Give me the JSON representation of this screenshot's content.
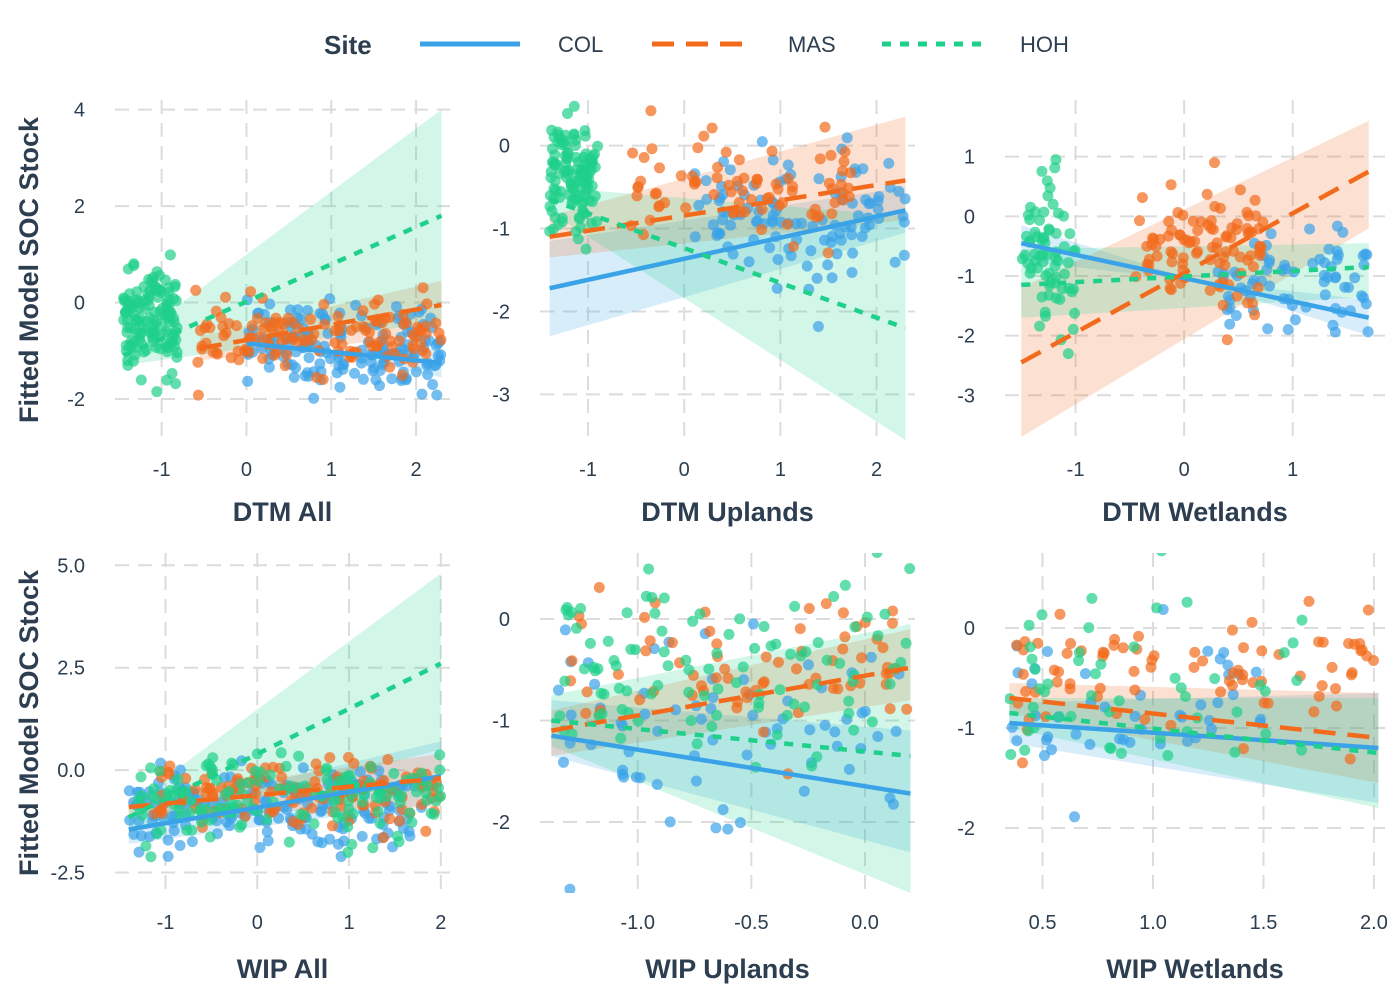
{
  "legend": {
    "title": "Site",
    "entries": [
      {
        "name": "COL",
        "color": "#3aa3e8",
        "dash": "solid"
      },
      {
        "name": "MAS",
        "color": "#f26b1d",
        "dash": "dashed"
      },
      {
        "name": "HOH",
        "color": "#1fd08a",
        "dash": "dotted"
      }
    ]
  },
  "chart_data": [
    {
      "type": "scatter",
      "panel": "top-left",
      "xlabel": "DTM All",
      "ylabel": "Fitted Model SOC Stock",
      "xlim": [
        -1.55,
        2.4
      ],
      "ylim": [
        -2.85,
        4.2
      ],
      "xticks": [
        -1,
        0,
        1,
        2
      ],
      "xtick_labels": [
        "-1",
        "0",
        "1",
        "2"
      ],
      "yticks": [
        -2,
        0,
        2,
        4
      ],
      "ytick_labels": [
        "-2",
        "0",
        "2",
        "4"
      ],
      "series": [
        {
          "name": "COL",
          "x_range": [
            0.0,
            2.3
          ],
          "y_mean": -0.9,
          "y_spread": 0.45,
          "n": 160,
          "fit": [
            [
              0.0,
              -0.85
            ],
            [
              2.3,
              -1.25
            ]
          ],
          "ribbon_lo": [
            [
              0.0,
              -0.7
            ],
            [
              2.3,
              -1.55
            ]
          ],
          "ribbon_hi": [
            [
              0.0,
              -1.0
            ],
            [
              2.3,
              -0.95
            ]
          ]
        },
        {
          "name": "MAS",
          "x_range": [
            -0.6,
            2.3
          ],
          "y_mean": -0.7,
          "y_spread": 0.35,
          "n": 130,
          "fit": [
            [
              -0.55,
              -0.95
            ],
            [
              2.3,
              -0.05
            ]
          ],
          "ribbon_lo": [
            [
              -0.55,
              -1.2
            ],
            [
              2.3,
              -0.65
            ]
          ],
          "ribbon_hi": [
            [
              -0.55,
              -0.7
            ],
            [
              2.3,
              0.45
            ]
          ]
        },
        {
          "name": "HOH",
          "x_range": [
            -1.45,
            -0.8
          ],
          "y_mean": -0.4,
          "y_spread": 0.5,
          "n": 140,
          "fit": [
            [
              -1.45,
              -1.1
            ],
            [
              2.3,
              1.8
            ]
          ],
          "ribbon_lo": [
            [
              -1.45,
              -1.3
            ],
            [
              2.3,
              -0.4
            ]
          ],
          "ribbon_hi": [
            [
              -1.45,
              -0.9
            ],
            [
              2.3,
              4.0
            ]
          ]
        }
      ]
    },
    {
      "type": "scatter",
      "panel": "top-middle",
      "xlabel": "DTM Uplands",
      "ylabel": "",
      "xlim": [
        -1.5,
        2.4
      ],
      "ylim": [
        -3.55,
        0.55
      ],
      "xticks": [
        -1,
        0,
        1,
        2
      ],
      "xtick_labels": [
        "-1",
        "0",
        "1",
        "2"
      ],
      "yticks": [
        -3,
        -2,
        -1,
        0
      ],
      "ytick_labels": [
        "-3",
        "-2",
        "-1",
        "0"
      ],
      "series": [
        {
          "name": "COL",
          "x_range": [
            0.1,
            2.3
          ],
          "y_mean": -0.9,
          "y_spread": 0.45,
          "n": 110,
          "fit": [
            [
              -1.4,
              -1.72
            ],
            [
              2.3,
              -0.78
            ]
          ],
          "ribbon_lo": [
            [
              -1.4,
              -2.3
            ],
            [
              2.3,
              -1.05
            ]
          ],
          "ribbon_hi": [
            [
              -1.4,
              -1.15
            ],
            [
              2.3,
              -0.5
            ]
          ]
        },
        {
          "name": "MAS",
          "x_range": [
            -0.6,
            1.8
          ],
          "y_mean": -0.5,
          "y_spread": 0.3,
          "n": 80,
          "fit": [
            [
              -1.4,
              -1.1
            ],
            [
              2.3,
              -0.42
            ]
          ],
          "ribbon_lo": [
            [
              -1.4,
              -1.35
            ],
            [
              2.3,
              -0.9
            ]
          ],
          "ribbon_hi": [
            [
              -1.4,
              -0.85
            ],
            [
              2.3,
              0.35
            ]
          ]
        },
        {
          "name": "HOH",
          "x_range": [
            -1.4,
            -0.9
          ],
          "y_mean": -0.4,
          "y_spread": 0.35,
          "n": 120,
          "fit": [
            [
              -1.4,
              -0.65
            ],
            [
              2.3,
              -2.2
            ]
          ],
          "ribbon_lo": [
            [
              -1.4,
              -0.8
            ],
            [
              2.3,
              -3.55
            ]
          ],
          "ribbon_hi": [
            [
              -1.4,
              -0.5
            ],
            [
              2.3,
              -0.85
            ]
          ]
        }
      ]
    },
    {
      "type": "scatter",
      "panel": "top-right",
      "xlabel": "DTM Wetlands",
      "ylabel": "",
      "xlim": [
        -1.65,
        1.85
      ],
      "ylim": [
        -3.75,
        1.95
      ],
      "xticks": [
        -1,
        0,
        1
      ],
      "xtick_labels": [
        "-1",
        "0",
        "1"
      ],
      "yticks": [
        -3,
        -2,
        -1,
        0,
        1
      ],
      "ytick_labels": [
        "-3",
        "-2",
        "-1",
        "0",
        "1"
      ],
      "series": [
        {
          "name": "COL",
          "x_range": [
            0.3,
            1.7
          ],
          "y_mean": -1.1,
          "y_spread": 0.4,
          "n": 70,
          "fit": [
            [
              -1.5,
              -0.45
            ],
            [
              1.7,
              -1.7
            ]
          ],
          "ribbon_lo": [
            [
              -1.5,
              -0.15
            ],
            [
              1.7,
              -2.0
            ]
          ],
          "ribbon_hi": [
            [
              -1.5,
              -0.75
            ],
            [
              1.7,
              -1.4
            ]
          ]
        },
        {
          "name": "MAS",
          "x_range": [
            -0.45,
            0.75
          ],
          "y_mean": -0.5,
          "y_spread": 0.55,
          "n": 100,
          "fit": [
            [
              -1.5,
              -2.45
            ],
            [
              1.7,
              0.75
            ]
          ],
          "ribbon_lo": [
            [
              -1.5,
              -3.7
            ],
            [
              1.7,
              -0.2
            ]
          ],
          "ribbon_hi": [
            [
              -1.5,
              -1.2
            ],
            [
              1.7,
              1.6
            ]
          ]
        },
        {
          "name": "HOH",
          "x_range": [
            -1.5,
            -1.0
          ],
          "y_mean": -0.6,
          "y_spread": 0.65,
          "n": 70,
          "fit": [
            [
              -1.5,
              -1.15
            ],
            [
              1.7,
              -0.85
            ]
          ],
          "ribbon_lo": [
            [
              -1.5,
              -1.7
            ],
            [
              1.7,
              -1.35
            ]
          ],
          "ribbon_hi": [
            [
              -1.5,
              -0.55
            ],
            [
              1.7,
              -0.45
            ]
          ]
        }
      ]
    },
    {
      "type": "scatter",
      "panel": "bottom-left",
      "xlabel": "WIP All",
      "ylabel": "Fitted Model SOC Stock",
      "xlim": [
        -1.55,
        2.1
      ],
      "ylim": [
        -3.0,
        5.3
      ],
      "xticks": [
        -1,
        0,
        1,
        2
      ],
      "xtick_labels": [
        "-1",
        "0",
        "1",
        "2"
      ],
      "yticks": [
        -2.5,
        0.0,
        2.5,
        5.0
      ],
      "ytick_labels": [
        "-2.5",
        "0.0",
        "2.5",
        "5.0"
      ],
      "series": [
        {
          "name": "COL",
          "x_range": [
            -1.4,
            1.8
          ],
          "y_mean": -1.0,
          "y_spread": 0.55,
          "n": 170,
          "fit": [
            [
              -1.4,
              -1.45
            ],
            [
              2.0,
              -0.15
            ]
          ],
          "ribbon_lo": [
            [
              -1.4,
              -1.8
            ],
            [
              2.0,
              -0.8
            ]
          ],
          "ribbon_hi": [
            [
              -1.4,
              -1.1
            ],
            [
              2.0,
              0.7
            ]
          ]
        },
        {
          "name": "MAS",
          "x_range": [
            -1.2,
            2.0
          ],
          "y_mean": -0.6,
          "y_spread": 0.4,
          "n": 130,
          "fit": [
            [
              -1.4,
              -0.9
            ],
            [
              2.0,
              -0.2
            ]
          ],
          "ribbon_lo": [
            [
              -1.4,
              -1.1
            ],
            [
              2.0,
              -0.9
            ]
          ],
          "ribbon_hi": [
            [
              -1.4,
              -0.7
            ],
            [
              2.0,
              0.4
            ]
          ]
        },
        {
          "name": "HOH",
          "x_range": [
            -1.3,
            2.0
          ],
          "y_mean": -0.7,
          "y_spread": 0.5,
          "n": 150,
          "fit": [
            [
              -1.4,
              -1.15
            ],
            [
              2.0,
              2.6
            ]
          ],
          "ribbon_lo": [
            [
              -1.4,
              -1.45
            ],
            [
              2.0,
              0.5
            ]
          ],
          "ribbon_hi": [
            [
              -1.4,
              -0.85
            ],
            [
              2.0,
              4.8
            ]
          ]
        }
      ]
    },
    {
      "type": "scatter",
      "panel": "bottom-middle",
      "xlabel": "WIP Uplands",
      "ylabel": "",
      "xlim": [
        -1.43,
        0.22
      ],
      "ylim": [
        -2.7,
        0.65
      ],
      "xticks": [
        -1.0,
        -0.5,
        0.0
      ],
      "xtick_labels": [
        "-1.0",
        "-0.5",
        "0.0"
      ],
      "yticks": [
        -2,
        -1,
        0
      ],
      "ytick_labels": [
        "-2",
        "-1",
        "0"
      ],
      "series": [
        {
          "name": "COL",
          "x_range": [
            -1.35,
            0.2
          ],
          "y_mean": -1.0,
          "y_spread": 0.5,
          "n": 70,
          "fit": [
            [
              -1.38,
              -1.15
            ],
            [
              0.2,
              -1.72
            ]
          ],
          "ribbon_lo": [
            [
              -1.38,
              -1.35
            ],
            [
              0.2,
              -2.3
            ]
          ],
          "ribbon_hi": [
            [
              -1.38,
              -0.8
            ],
            [
              0.2,
              -1.1
            ]
          ]
        },
        {
          "name": "MAS",
          "x_range": [
            -1.3,
            0.2
          ],
          "y_mean": -0.5,
          "y_spread": 0.35,
          "n": 70,
          "fit": [
            [
              -1.38,
              -1.1
            ],
            [
              0.2,
              -0.48
            ]
          ],
          "ribbon_lo": [
            [
              -1.38,
              -1.35
            ],
            [
              0.2,
              -0.8
            ]
          ],
          "ribbon_hi": [
            [
              -1.38,
              -0.9
            ],
            [
              0.2,
              -0.1
            ]
          ]
        },
        {
          "name": "HOH",
          "x_range": [
            -1.35,
            0.2
          ],
          "y_mean": -0.4,
          "y_spread": 0.45,
          "n": 100,
          "fit": [
            [
              -1.38,
              -1.0
            ],
            [
              0.2,
              -1.35
            ]
          ],
          "ribbon_lo": [
            [
              -1.38,
              -1.25
            ],
            [
              0.2,
              -2.7
            ]
          ],
          "ribbon_hi": [
            [
              -1.38,
              -0.75
            ],
            [
              0.2,
              -0.05
            ]
          ]
        }
      ]
    },
    {
      "type": "scatter",
      "panel": "bottom-right",
      "xlabel": "WIP Wetlands",
      "ylabel": "",
      "xlim": [
        0.33,
        2.05
      ],
      "ylim": [
        -2.65,
        0.75
      ],
      "xticks": [
        0.5,
        1.0,
        1.5,
        2.0
      ],
      "xtick_labels": [
        "0.5",
        "1.0",
        "1.5",
        "2.0"
      ],
      "yticks": [
        -2,
        -1,
        0
      ],
      "ytick_labels": [
        "-2",
        "-1",
        "0"
      ],
      "series": [
        {
          "name": "COL",
          "x_range": [
            0.35,
            1.5
          ],
          "y_mean": -0.9,
          "y_spread": 0.4,
          "n": 45,
          "fit": [
            [
              0.35,
              -0.95
            ],
            [
              2.02,
              -1.2
            ]
          ],
          "ribbon_lo": [
            [
              0.35,
              -0.75
            ],
            [
              2.02,
              -0.65
            ]
          ],
          "ribbon_hi": [
            [
              0.35,
              -1.15
            ],
            [
              2.02,
              -1.75
            ]
          ]
        },
        {
          "name": "MAS",
          "x_range": [
            0.35,
            2.0
          ],
          "y_mean": -0.5,
          "y_spread": 0.35,
          "n": 80,
          "fit": [
            [
              0.35,
              -0.7
            ],
            [
              2.02,
              -1.1
            ]
          ],
          "ribbon_lo": [
            [
              0.35,
              -0.55
            ],
            [
              2.02,
              -0.65
            ]
          ],
          "ribbon_hi": [
            [
              0.35,
              -0.85
            ],
            [
              2.02,
              -1.55
            ]
          ]
        },
        {
          "name": "HOH",
          "x_range": [
            0.35,
            1.7
          ],
          "y_mean": -0.6,
          "y_spread": 0.55,
          "n": 50,
          "fit": [
            [
              0.35,
              -0.85
            ],
            [
              2.02,
              -1.25
            ]
          ],
          "ribbon_lo": [
            [
              0.35,
              -0.7
            ],
            [
              2.02,
              -0.7
            ]
          ],
          "ribbon_hi": [
            [
              0.35,
              -1.0
            ],
            [
              2.02,
              -1.8
            ]
          ]
        }
      ]
    }
  ]
}
